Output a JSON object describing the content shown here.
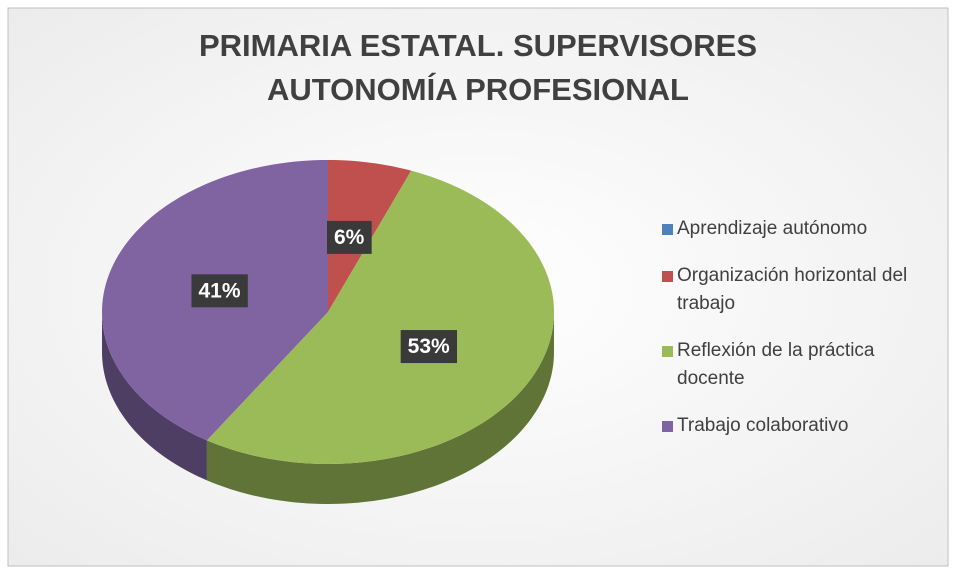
{
  "chart_data": {
    "type": "pie3d",
    "title": "PRIMARIA ESTATAL. SUPERVISORES",
    "subtitle": "AUTONOMÍA PROFESIONAL",
    "categories": [
      "Aprendizaje autónomo",
      "Organización horizontal del trabajo",
      "Reflexión de la práctica docente",
      "Trabajo colaborativo"
    ],
    "values": [
      0,
      6,
      53,
      41
    ],
    "value_labels": [
      null,
      "6%",
      "53%",
      "41%"
    ],
    "colors": [
      "#4f81bd",
      "#c0504d",
      "#9bbb59",
      "#8064a2"
    ],
    "legend": "right"
  }
}
